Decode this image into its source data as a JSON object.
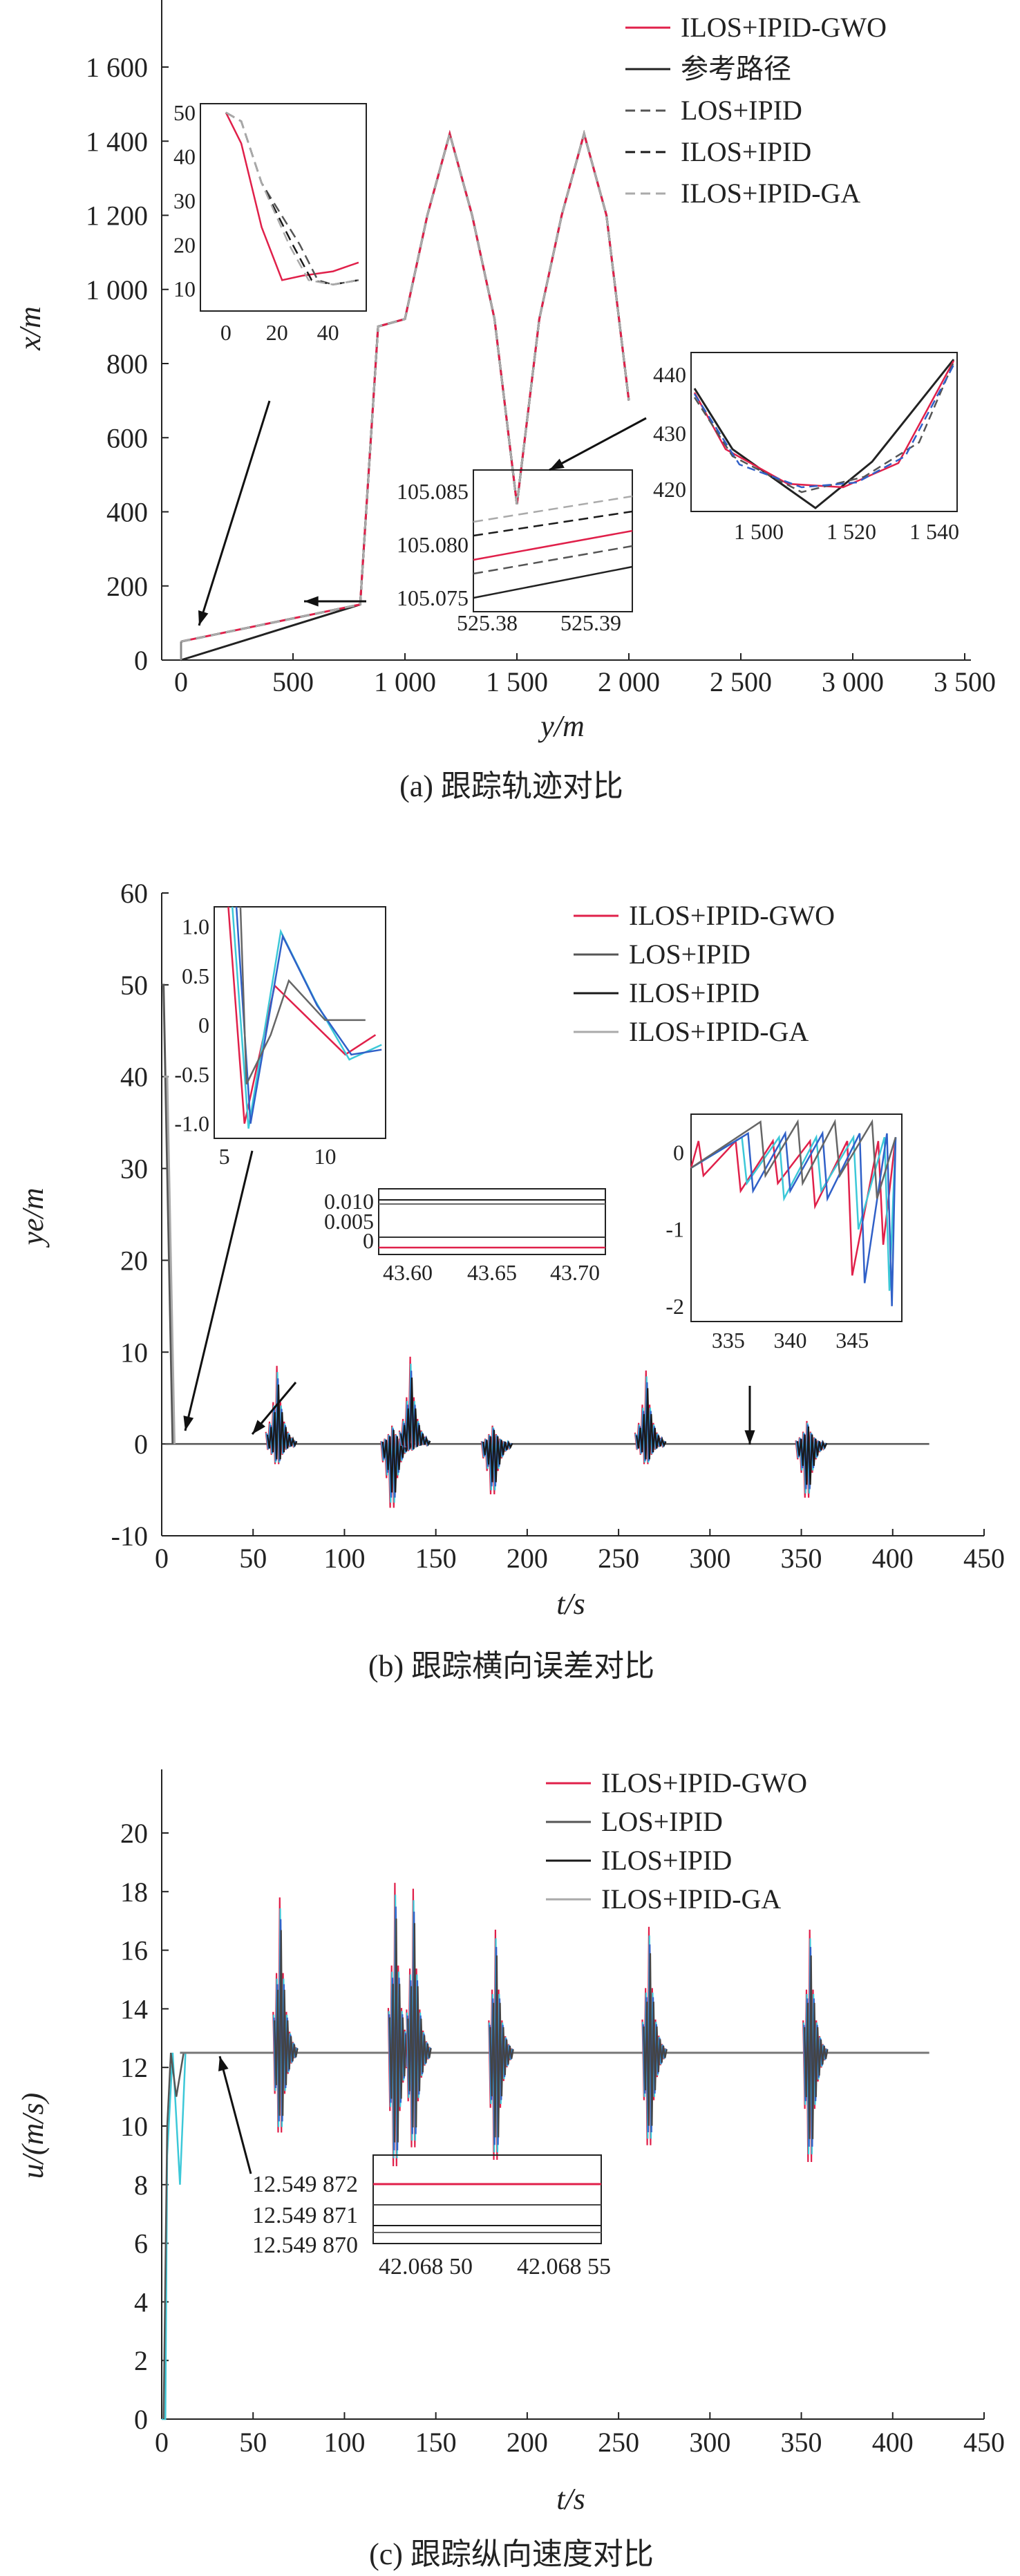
{
  "panels": [
    {
      "id": "a",
      "caption": "(a) 跟踪轨迹对比",
      "xlabel": "y/m",
      "ylabel": "x/m",
      "legend": [
        "ILOS+IPID-GWO",
        "参考路径",
        "LOS+IPID",
        "ILOS+IPID",
        "ILOS+IPID-GA"
      ],
      "xticks": [
        "0",
        "500",
        "1 000",
        "1 500",
        "2 000",
        "2 500",
        "3 000",
        "3 500"
      ],
      "yticks": [
        "200",
        "400",
        "600",
        "800",
        "1 000",
        "1 200",
        "1 400",
        "1 600"
      ],
      "y_zero_label": "0",
      "inset1": {
        "xticks": [
          "0",
          "20",
          "40"
        ],
        "yticks": [
          "10",
          "20",
          "30",
          "40",
          "50"
        ]
      },
      "inset2": {
        "xticks": [
          "525.38",
          "525.39"
        ],
        "yticks": [
          "105.075",
          "105.080",
          "105.085"
        ]
      },
      "inset3": {
        "xticks": [
          "1 500",
          "1 520",
          "1 540"
        ],
        "yticks": [
          "420",
          "430",
          "440"
        ]
      }
    },
    {
      "id": "b",
      "caption": "(b) 跟踪横向误差对比",
      "xlabel": "t/s",
      "ylabel": "ye/m",
      "legend": [
        "ILOS+IPID-GWO",
        "LOS+IPID",
        "ILOS+IPID",
        "ILOS+IPID-GA"
      ],
      "xticks": [
        "0",
        "50",
        "100",
        "150",
        "200",
        "250",
        "300",
        "350",
        "400",
        "450"
      ],
      "yticks": [
        "-10",
        "0",
        "10",
        "20",
        "30",
        "40",
        "50",
        "60"
      ],
      "inset1": {
        "xticks": [
          "5",
          "10"
        ],
        "yticks": [
          "-1.0",
          "-0.5",
          "0",
          "0.5",
          "1.0"
        ]
      },
      "inset2": {
        "xticks": [
          "43.60",
          "43.65",
          "43.70"
        ],
        "yticks": [
          "0",
          "0.005",
          "0.010"
        ]
      },
      "inset3": {
        "xticks": [
          "335",
          "340",
          "345"
        ],
        "yticks": [
          "-2",
          "-1",
          "0"
        ]
      }
    },
    {
      "id": "c",
      "caption": "(c) 跟踪纵向速度对比",
      "xlabel": "t/s",
      "ylabel": "u/(m/s)",
      "legend": [
        "ILOS+IPID-GWO",
        "LOS+IPID",
        "ILOS+IPID",
        "ILOS+IPID-GA"
      ],
      "xticks": [
        "0",
        "50",
        "100",
        "150",
        "200",
        "250",
        "300",
        "350",
        "400",
        "450"
      ],
      "yticks": [
        "0",
        "2",
        "4",
        "6",
        "8",
        "10",
        "12",
        "14",
        "16",
        "18",
        "20"
      ],
      "inset1": {
        "xticks": [
          "42.068 50",
          "42.068 55"
        ],
        "yticks": [
          "12.549 872",
          "12.549 871",
          "12.549 870"
        ]
      }
    }
  ],
  "colors": {
    "gwo": "#e0204a",
    "ref": "#222222",
    "los": "#555555",
    "ilos": "#1a1a1a",
    "ga": "#aaaaaa",
    "cyan": "#3cc8d8",
    "blue": "#3060c8"
  },
  "chart_data": [
    {
      "type": "line",
      "panel": "a",
      "xlabel": "y/m",
      "ylabel": "x/m",
      "xlim": [
        -100,
        3550
      ],
      "ylim": [
        -50,
        1800
      ],
      "series": [
        {
          "name": "参考路径",
          "x": [
            0,
            800,
            880,
            1000,
            1100,
            1200,
            1300,
            1400,
            1500,
            1600,
            1700,
            1800,
            1900,
            2000
          ],
          "y": [
            0,
            150,
            900,
            920,
            1200,
            1420,
            1200,
            920,
            420,
            920,
            1200,
            1420,
            1200,
            700
          ]
        },
        {
          "name": "ILOS+IPID-GWO",
          "x": [
            0,
            800,
            880,
            1000,
            1100,
            1200,
            1300,
            1400,
            1500,
            1600,
            1700,
            1800,
            1900,
            2000
          ],
          "y": [
            50,
            150,
            900,
            920,
            1200,
            1420,
            1200,
            920,
            420,
            920,
            1200,
            1420,
            1200,
            700
          ]
        },
        {
          "name": "LOS+IPID",
          "x": [
            0,
            800,
            880,
            1000,
            1100,
            1200,
            1300,
            1400,
            1500,
            1600,
            1700,
            1800,
            1900,
            2000
          ],
          "y": [
            50,
            150,
            900,
            920,
            1200,
            1420,
            1200,
            920,
            420,
            920,
            1200,
            1420,
            1200,
            700
          ]
        },
        {
          "name": "ILOS+IPID",
          "x": [
            0,
            800,
            880,
            1000,
            1100,
            1200,
            1300,
            1400,
            1500,
            1600,
            1700,
            1800,
            1900,
            2000
          ],
          "y": [
            50,
            150,
            900,
            920,
            1200,
            1420,
            1200,
            920,
            420,
            920,
            1200,
            1420,
            1200,
            700
          ]
        },
        {
          "name": "ILOS+IPID-GA",
          "x": [
            0,
            800,
            880,
            1000,
            1100,
            1200,
            1300,
            1400,
            1500,
            1600,
            1700,
            1800,
            1900,
            2000
          ],
          "y": [
            50,
            150,
            900,
            920,
            1200,
            1420,
            1200,
            920,
            420,
            920,
            1200,
            1420,
            1200,
            700
          ]
        }
      ]
    },
    {
      "type": "line",
      "panel": "b",
      "xlabel": "t/s",
      "ylabel": "ye/m",
      "xlim": [
        0,
        450
      ],
      "ylim": [
        -10,
        60
      ],
      "bursts_t": [
        65,
        128,
        138,
        183,
        267,
        355
      ],
      "series": [
        {
          "name": "ILOS+IPID-GWO",
          "x": [
            0,
            2,
            6,
            10,
            60,
            66,
            70,
            125,
            140,
            180,
            190,
            262,
            275,
            350,
            360,
            420
          ],
          "y": [
            50,
            48,
            0,
            0,
            0,
            -3,
            0,
            -8,
            7,
            -7,
            3,
            6,
            -3,
            -7,
            2,
            0
          ]
        },
        {
          "name": "LOS+IPID",
          "x": [
            0,
            2,
            6,
            10,
            60,
            66,
            70,
            125,
            140,
            180,
            190,
            262,
            275,
            350,
            360,
            420
          ],
          "y": [
            50,
            48,
            0,
            0,
            0,
            8,
            0,
            -9,
            9,
            -7,
            3,
            8,
            -3,
            -7,
            2,
            0
          ]
        },
        {
          "name": "ILOS+IPID",
          "x": [
            0,
            2,
            6,
            10,
            60,
            66,
            70,
            125,
            140,
            180,
            190,
            262,
            275,
            350,
            360,
            420
          ],
          "y": [
            50,
            48,
            0,
            0,
            0,
            8,
            0,
            -9,
            9,
            -7,
            3,
            8,
            -3,
            -7,
            2,
            0
          ]
        },
        {
          "name": "ILOS+IPID-GA",
          "x": [
            0,
            2,
            6,
            10,
            60,
            66,
            70,
            125,
            140,
            180,
            190,
            262,
            275,
            350,
            360,
            420
          ],
          "y": [
            40,
            40,
            0,
            0,
            0,
            8,
            0,
            -9,
            9,
            -7,
            3,
            8,
            -3,
            -7,
            2,
            0
          ]
        }
      ]
    },
    {
      "type": "line",
      "panel": "c",
      "xlabel": "t/s",
      "ylabel": "u/(m/s)",
      "xlim": [
        0,
        450
      ],
      "ylim": [
        0,
        22
      ],
      "bursts_t": [
        65,
        128,
        138,
        183,
        267,
        355
      ],
      "series": [
        {
          "name": "ILOS+IPID-GWO",
          "x": [
            0,
            5,
            10,
            60,
            65,
            68,
            125,
            128,
            138,
            183,
            267,
            355,
            420
          ],
          "y": [
            0,
            8,
            12.5,
            12.5,
            17.5,
            12.5,
            7,
            18,
            17.5,
            16.5,
            16.5,
            16.5,
            12.5
          ]
        },
        {
          "name": "LOS+IPID",
          "x": [
            0,
            5,
            10,
            60,
            65,
            68,
            125,
            128,
            138,
            183,
            267,
            355,
            420
          ],
          "y": [
            0,
            8,
            12.5,
            12.5,
            17.5,
            12.5,
            7,
            18,
            17.5,
            16.5,
            16.5,
            16.5,
            12.5
          ]
        },
        {
          "name": "ILOS+IPID",
          "x": [
            0,
            5,
            10,
            60,
            65,
            68,
            125,
            128,
            138,
            183,
            267,
            355,
            420
          ],
          "y": [
            0,
            8,
            12.5,
            12.5,
            17.5,
            12.5,
            7,
            18,
            17.5,
            16.5,
            16.5,
            16.5,
            12.5
          ]
        },
        {
          "name": "ILOS+IPID-GA",
          "x": [
            0,
            5,
            10,
            60,
            65,
            68,
            125,
            128,
            138,
            183,
            267,
            355,
            420
          ],
          "y": [
            0,
            8,
            12.5,
            12.5,
            17.5,
            12.5,
            7,
            18,
            17.5,
            16.5,
            16.5,
            16.5,
            12.5
          ]
        }
      ]
    }
  ]
}
